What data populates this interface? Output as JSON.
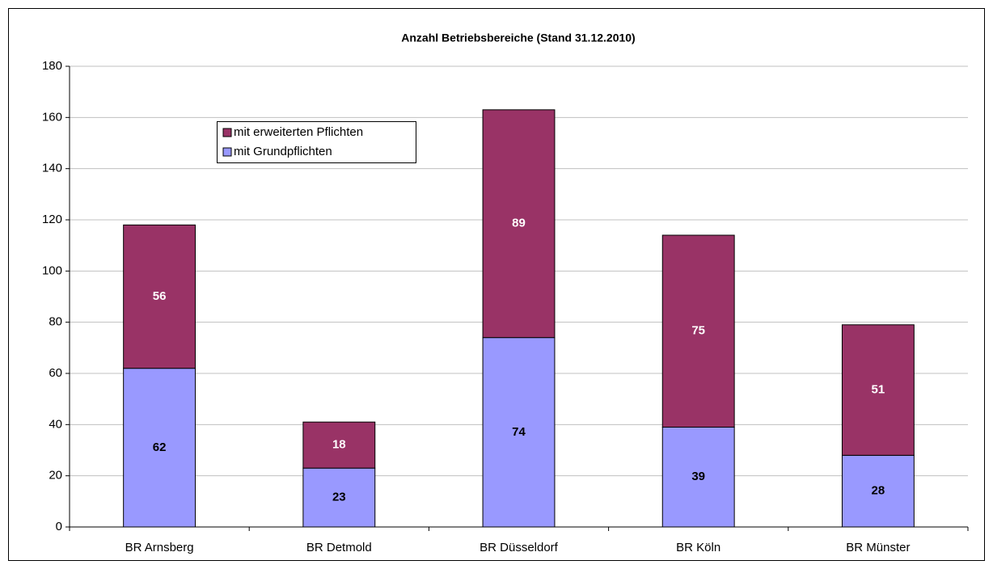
{
  "chart_data": {
    "type": "stacked-bar",
    "title": "Anzahl Betriebsbereiche (Stand 31.12.2010)",
    "categories": [
      "BR Arnsberg",
      "BR Detmold",
      "BR Düsseldorf",
      "BR Köln",
      "BR Münster"
    ],
    "series": [
      {
        "name": "mit Grundpflichten",
        "color": "#9999ff",
        "label_color": "#000000",
        "values": [
          62,
          23,
          74,
          39,
          28
        ]
      },
      {
        "name": "mit erweiterten Pflichten",
        "color": "#993366",
        "label_color": "#ffffff",
        "values": [
          56,
          18,
          89,
          75,
          51
        ]
      }
    ],
    "ylim": [
      0,
      180
    ],
    "yticks": [
      0,
      20,
      40,
      60,
      80,
      100,
      120,
      140,
      160,
      180
    ],
    "grid": true,
    "legend": "upper-left"
  }
}
